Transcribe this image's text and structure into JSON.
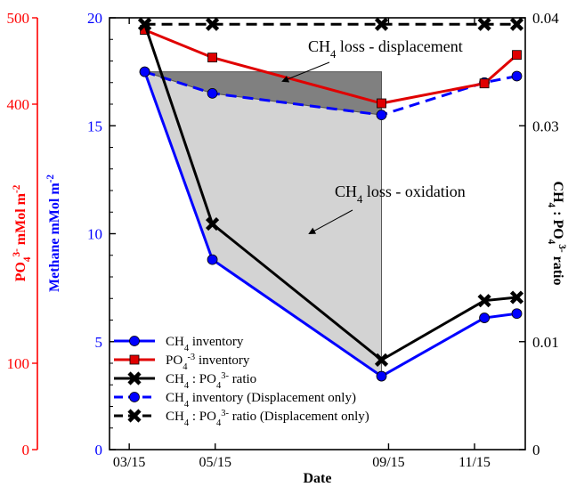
{
  "chart_data": {
    "type": "line",
    "xlabel": "Date",
    "x_ticks": [
      "03/15",
      "05/15",
      "09/15",
      "11/15"
    ],
    "x_tick_days": [
      74,
      135,
      258,
      319
    ],
    "x_range_days": [
      60,
      355
    ],
    "left_axis_1": {
      "label_parts": [
        "PO",
        "4",
        "3-",
        " mMol m",
        "-2"
      ],
      "color": "#ff0000",
      "range": [
        0,
        500
      ],
      "ticks": [
        "0",
        "100",
        "400",
        "500"
      ],
      "tick_values": [
        0,
        100,
        400,
        500
      ]
    },
    "left_axis_2": {
      "label_parts": [
        "Methane mMol m",
        "-2"
      ],
      "color": "#0000ff",
      "range": [
        0,
        20
      ],
      "ticks": [
        "0",
        "5",
        "10",
        "15",
        "20"
      ],
      "tick_values": [
        0,
        5,
        10,
        15,
        20
      ]
    },
    "right_axis": {
      "label_parts": [
        "CH",
        "4",
        " : PO",
        "4",
        "3-",
        " ratio"
      ],
      "color": "#000000",
      "range": [
        0,
        0.04
      ],
      "ticks": [
        "0",
        "0.01",
        "0.03",
        "0.04"
      ],
      "tick_values": [
        0,
        0.01,
        0.03,
        0.04
      ]
    },
    "x_days": [
      85,
      133,
      253,
      326,
      349
    ],
    "series": [
      {
        "key": "ch4",
        "name_parts": [
          "CH",
          "4",
          " inventory"
        ],
        "axis": "methane",
        "color": "#0000ff",
        "style": "solid",
        "marker": "circle",
        "values": [
          17.5,
          8.8,
          3.4,
          6.1,
          6.3
        ]
      },
      {
        "key": "po4",
        "name_parts": [
          "PO",
          "4",
          "-3",
          " inventory"
        ],
        "axis": "po4",
        "color": "#e00000",
        "style": "solid",
        "marker": "square",
        "values": [
          486,
          454,
          401,
          424,
          457
        ]
      },
      {
        "key": "ratio",
        "name_parts": [
          "CH",
          "4",
          " : PO",
          "4",
          "3-",
          " ratio"
        ],
        "axis": "ratio",
        "color": "#000000",
        "style": "solid",
        "marker": "x",
        "values": [
          0.0394,
          0.0209,
          0.0083,
          0.0138,
          0.0141
        ]
      },
      {
        "key": "ch4_disp",
        "name_parts": [
          "CH",
          "4",
          " inventory (Displacement only)"
        ],
        "axis": "methane",
        "color": "#0000ff",
        "style": "dashed",
        "marker": "circle",
        "values": [
          17.5,
          16.5,
          15.5,
          17.0,
          17.3
        ]
      },
      {
        "key": "ratio_disp",
        "name_parts": [
          "CH",
          "4",
          " : PO",
          "4",
          "3-",
          " ratio (Displacement only)"
        ],
        "axis": "ratio",
        "color": "#000000",
        "style": "dashed",
        "marker": "x",
        "values": [
          0.0394,
          0.0394,
          0.0394,
          0.0394,
          0.0394
        ]
      }
    ],
    "annotations": [
      {
        "key": "displacement",
        "text_parts": [
          "CH",
          "4",
          " loss - displacement"
        ]
      },
      {
        "key": "oxidation",
        "text_parts": [
          "CH",
          "4",
          " loss - oxidation"
        ]
      }
    ],
    "legend_position": "bottom-left",
    "grid": false
  },
  "colors": {
    "disp_fill": "#808080",
    "oxid_fill": "#d3d3d3"
  }
}
